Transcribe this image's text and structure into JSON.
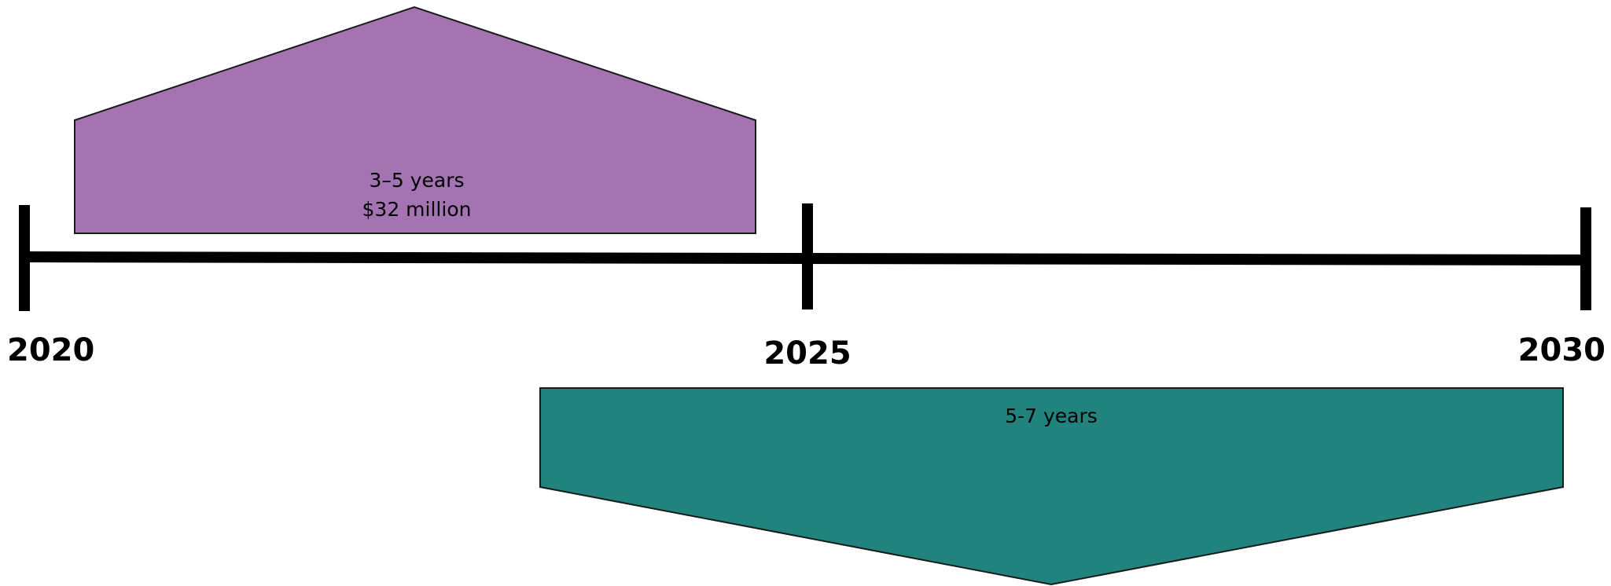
{
  "timeline": {
    "years": [
      "2020",
      "2025",
      "2030"
    ]
  },
  "blocks": [
    {
      "id": "phase-1",
      "duration_label": "3–5 years",
      "cost_label": "$32 million",
      "color": "#a474b2"
    },
    {
      "id": "phase-2",
      "duration_label": "5-7 years",
      "color": "#21837d"
    }
  ]
}
